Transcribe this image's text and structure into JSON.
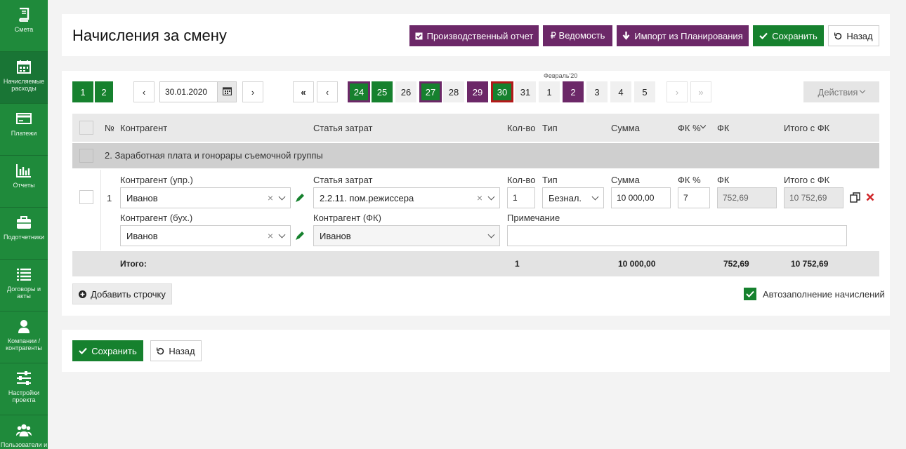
{
  "sidebar": {
    "items": [
      {
        "label": "Смета",
        "icon": "book-icon"
      },
      {
        "label": "Начисляемые расходы",
        "icon": "calendar-icon"
      },
      {
        "label": "Платежи",
        "icon": "card-icon"
      },
      {
        "label": "Отчеты",
        "icon": "bar-chart-icon"
      },
      {
        "label": "Подотчетники",
        "icon": "briefcase-icon"
      },
      {
        "label": "Договоры и акты",
        "icon": "list-icon"
      },
      {
        "label": "Компании / контрагенты",
        "icon": "user-icon"
      },
      {
        "label": "Настройки проекта",
        "icon": "sliders-icon"
      },
      {
        "label": "Пользователи и",
        "icon": "users-icon"
      }
    ]
  },
  "header": {
    "title": "Начисления за смену",
    "buttons": {
      "production_report": "Производственный отчет",
      "statement": "₽ Ведомость",
      "import": "Импорт из Планирования",
      "save": "Сохранить",
      "back": "Назад"
    }
  },
  "toolbar": {
    "pages": [
      "1",
      "2"
    ],
    "date_value": "30.01.2020",
    "month_label": "Февраль'20",
    "days": [
      "24",
      "25",
      "26",
      "27",
      "28",
      "29",
      "30",
      "31",
      "1",
      "2",
      "3",
      "4",
      "5"
    ],
    "actions_label": "Действия"
  },
  "table": {
    "columns": {
      "num": "№",
      "counterparty": "Контрагент",
      "cost_item": "Статья затрат",
      "qty": "Кол-во",
      "type": "Тип",
      "sum": "Сумма",
      "fk_pct": "ФК %",
      "fk": "ФК",
      "total_fk": "Итого с ФК"
    },
    "group_title": "2. Заработная плата и гонорары съемочной группы",
    "row": {
      "num": "1",
      "counterparty_mgmt_label": "Контрагент (упр.)",
      "counterparty_mgmt": "Иванов",
      "cost_item_label": "Статья затрат",
      "cost_item": "2.2.11. пом.режиссера",
      "qty_label": "Кол-во",
      "qty": "1",
      "type_label": "Тип",
      "type": "Безнал.",
      "sum_label": "Сумма",
      "sum": "10 000,00",
      "fk_pct_label": "ФК %",
      "fk_pct": "7",
      "fk_label": "ФК",
      "fk": "752,69",
      "total_label": "Итого с ФК",
      "total": "10 752,69",
      "counterparty_acc_label": "Контрагент (бух.)",
      "counterparty_acc": "Иванов",
      "counterparty_fk_label": "Контрагент (ФК)",
      "counterparty_fk": "Иванов",
      "note_label": "Примечание",
      "note": ""
    },
    "totals": {
      "label": "Итого:",
      "qty": "1",
      "sum": "10 000,00",
      "fk": "752,69",
      "total": "10 752,69"
    }
  },
  "footer": {
    "add_row": "Добавить строчку",
    "autofill": "Автозаполнение начислений",
    "save": "Сохранить",
    "back": "Назад"
  },
  "colors": {
    "green": "#16812e",
    "purple": "#6c2868",
    "red_border": "#b3191a"
  }
}
